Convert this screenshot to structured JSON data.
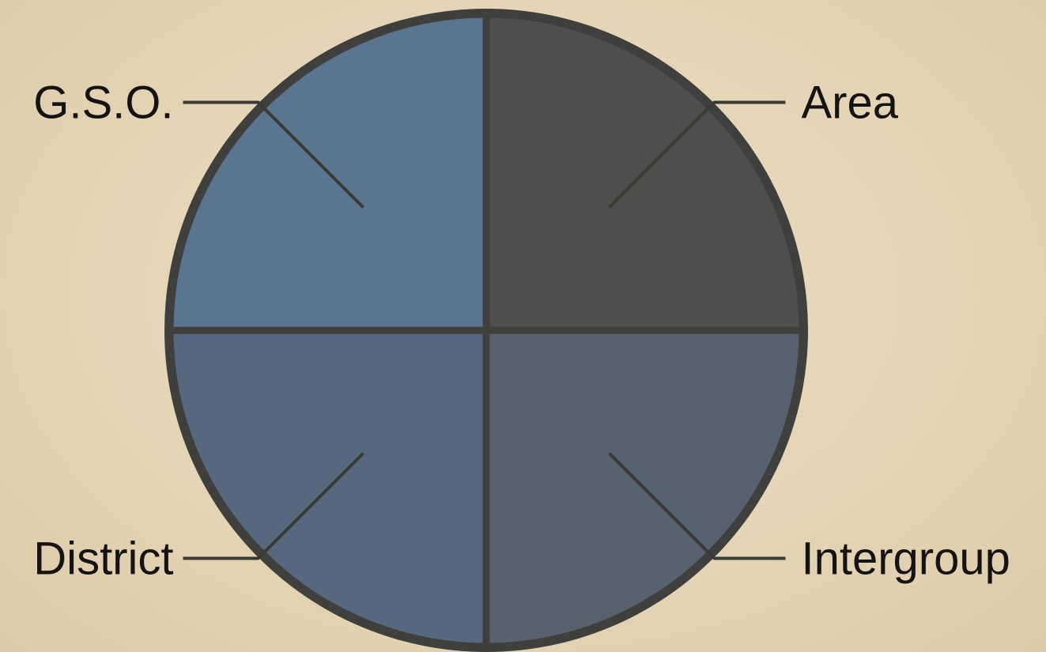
{
  "chart_data": {
    "type": "pie",
    "categories": [
      "Area",
      "Intergroup",
      "District",
      "G.S.O."
    ],
    "values": [
      25,
      25,
      25,
      25
    ],
    "colors": [
      "#4d4f4c",
      "#56626e",
      "#56687e",
      "#5a7590"
    ],
    "title": "",
    "legend": "none",
    "labels": "outside-with-leader-lines"
  },
  "style": {
    "outline_color": "#3f403d",
    "background_color": "#e6d8ba"
  }
}
